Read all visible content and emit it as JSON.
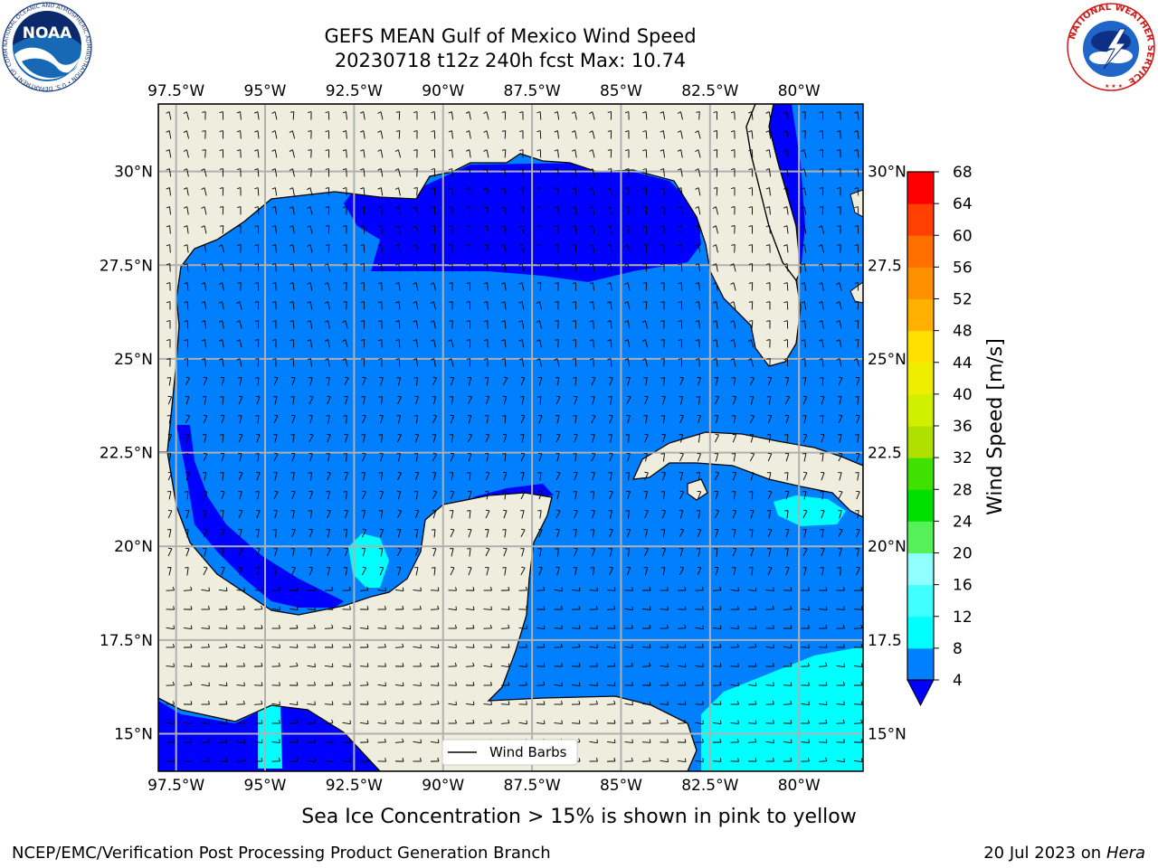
{
  "title_line1": "GEFS MEAN Gulf of Mexico Wind Speed",
  "title_line2": "20230718 t12z 240h fcst   Max: 10.74",
  "note": "Sea Ice Concentration > 15% is shown in pink to yellow",
  "footer_left": "NCEP/EMC/Verification Post Processing Product Generation Branch",
  "footer_right_date": "20 Jul 2023 on ",
  "footer_right_host": "Hera",
  "noaa_logo": {
    "text": "NOAA",
    "ring_text": "NATIONAL OCEANIC AND ATMOSPHERIC ADMINISTRATION • U.S. DEPARTMENT OF COMMERCE"
  },
  "nws_logo": {
    "ring_text": "NATIONAL WEATHER SERVICE"
  },
  "map": {
    "lon_ticks": [
      "97.5°W",
      "95°W",
      "92.5°W",
      "90°W",
      "87.5°W",
      "85°W",
      "82.5°W",
      "80°W"
    ],
    "lon_values": [
      -97.5,
      -95,
      -92.5,
      -90,
      -87.5,
      -85,
      -82.5,
      -80
    ],
    "lat_ticks_left": [
      "30°N",
      "27.5°N",
      "25°N",
      "22.5°N",
      "20°N",
      "17.5°N",
      "15°N"
    ],
    "lat_ticks_right": [
      "30°N",
      "27.5",
      "25°N",
      "22.5",
      "20°N",
      "17.5",
      "15°N"
    ],
    "lat_values": [
      30,
      27.5,
      25,
      22.5,
      20,
      17.5,
      15
    ],
    "lon_range": [
      -98,
      -78.2
    ],
    "lat_range": [
      14,
      31.8
    ],
    "legend_label": "Wind Barbs",
    "colors": {
      "land": "#eeedde",
      "wind_4_8": "#0080ff",
      "wind_lt4": "#0000ff",
      "wind_8_12": "#00ffff",
      "grid": "#b0b0b0"
    }
  },
  "colorbar": {
    "label": "Wind Speed [m/s]",
    "ticks": [
      "4",
      "8",
      "12",
      "16",
      "20",
      "24",
      "28",
      "32",
      "36",
      "40",
      "44",
      "48",
      "52",
      "56",
      "60",
      "64",
      "68"
    ],
    "colors": [
      "#0080ff",
      "#00ffff",
      "#40ffff",
      "#90ffff",
      "#55f05a",
      "#00e000",
      "#40e000",
      "#b0e000",
      "#d0f000",
      "#eeee00",
      "#ffe000",
      "#ffb000",
      "#ff9000",
      "#ff7000",
      "#ff4000",
      "#ff0000"
    ],
    "extend_color": "#0000ff"
  }
}
